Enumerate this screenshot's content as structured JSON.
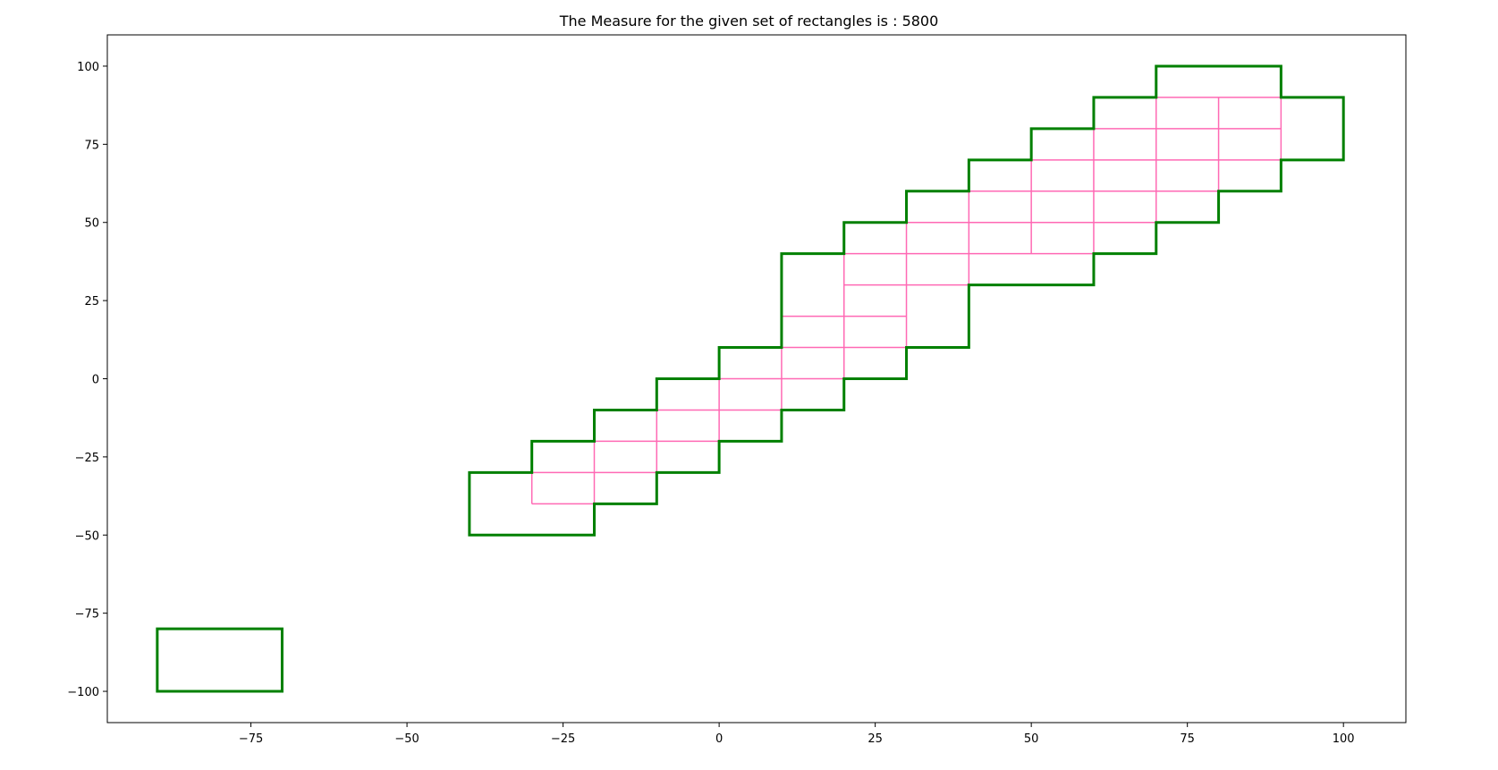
{
  "chart_data": {
    "type": "outline",
    "title": "The Measure for the given set of rectangles is : 5800",
    "xlim": [
      -98,
      110
    ],
    "ylim": [
      -110,
      110
    ],
    "xticks": [
      -75,
      -50,
      -25,
      0,
      25,
      50,
      75,
      100
    ],
    "yticks": [
      100,
      75,
      50,
      25,
      0,
      -25,
      -50,
      -75,
      -100
    ],
    "xtick_labels": [
      "−75",
      "−50",
      "−25",
      "0",
      "25",
      "50",
      "75",
      "100"
    ],
    "ytick_labels": [
      "100",
      "75",
      "50",
      "25",
      "0",
      "−25",
      "−50",
      "−75",
      "−100"
    ],
    "outline_color": "#008000",
    "grid_color": "#ff69b4",
    "outline_polygons": [
      [
        [
          -90,
          -100
        ],
        [
          -70,
          -100
        ],
        [
          -70,
          -80
        ],
        [
          -90,
          -80
        ]
      ],
      [
        [
          -40,
          -50
        ],
        [
          -20,
          -50
        ],
        [
          -20,
          -40
        ],
        [
          -10,
          -40
        ],
        [
          -10,
          -30
        ],
        [
          0,
          -30
        ],
        [
          0,
          -20
        ],
        [
          10,
          -20
        ],
        [
          10,
          -10
        ],
        [
          20,
          -10
        ],
        [
          20,
          0
        ],
        [
          30,
          0
        ],
        [
          30,
          10
        ],
        [
          40,
          10
        ],
        [
          40,
          30
        ],
        [
          60,
          30
        ],
        [
          60,
          40
        ],
        [
          70,
          40
        ],
        [
          70,
          50
        ],
        [
          80,
          50
        ],
        [
          80,
          60
        ],
        [
          90,
          60
        ],
        [
          90,
          70
        ],
        [
          100,
          70
        ],
        [
          100,
          90
        ],
        [
          90,
          90
        ],
        [
          90,
          100
        ],
        [
          70,
          100
        ],
        [
          70,
          90
        ],
        [
          60,
          90
        ],
        [
          60,
          80
        ],
        [
          50,
          80
        ],
        [
          50,
          70
        ],
        [
          40,
          70
        ],
        [
          40,
          60
        ],
        [
          30,
          60
        ],
        [
          30,
          50
        ],
        [
          20,
          50
        ],
        [
          20,
          40
        ],
        [
          10,
          40
        ],
        [
          10,
          10
        ],
        [
          0,
          10
        ],
        [
          0,
          0
        ],
        [
          -10,
          0
        ],
        [
          -10,
          -10
        ],
        [
          -20,
          -10
        ],
        [
          -20,
          -20
        ],
        [
          -30,
          -20
        ],
        [
          -30,
          -30
        ],
        [
          -40,
          -30
        ]
      ]
    ],
    "grid_segments": [
      [
        [
          -30,
          -40
        ],
        [
          -20,
          -40
        ]
      ],
      [
        [
          -30,
          -30
        ],
        [
          -10,
          -30
        ]
      ],
      [
        [
          -20,
          -20
        ],
        [
          0,
          -20
        ]
      ],
      [
        [
          -10,
          -10
        ],
        [
          10,
          -10
        ]
      ],
      [
        [
          0,
          0
        ],
        [
          20,
          0
        ]
      ],
      [
        [
          10,
          10
        ],
        [
          30,
          10
        ]
      ],
      [
        [
          10,
          20
        ],
        [
          30,
          20
        ]
      ],
      [
        [
          20,
          30
        ],
        [
          40,
          30
        ]
      ],
      [
        [
          20,
          40
        ],
        [
          60,
          40
        ]
      ],
      [
        [
          30,
          50
        ],
        [
          70,
          50
        ]
      ],
      [
        [
          40,
          60
        ],
        [
          80,
          60
        ]
      ],
      [
        [
          50,
          70
        ],
        [
          90,
          70
        ]
      ],
      [
        [
          60,
          80
        ],
        [
          90,
          80
        ]
      ],
      [
        [
          70,
          90
        ],
        [
          90,
          90
        ]
      ],
      [
        [
          -30,
          -40
        ],
        [
          -30,
          -30
        ]
      ],
      [
        [
          -20,
          -40
        ],
        [
          -20,
          -20
        ]
      ],
      [
        [
          -10,
          -30
        ],
        [
          -10,
          -10
        ]
      ],
      [
        [
          0,
          -20
        ],
        [
          0,
          0
        ]
      ],
      [
        [
          10,
          -10
        ],
        [
          10,
          10
        ]
      ],
      [
        [
          20,
          0
        ],
        [
          20,
          40
        ]
      ],
      [
        [
          30,
          10
        ],
        [
          30,
          50
        ]
      ],
      [
        [
          40,
          30
        ],
        [
          40,
          60
        ]
      ],
      [
        [
          50,
          40
        ],
        [
          50,
          70
        ]
      ],
      [
        [
          60,
          40
        ],
        [
          60,
          80
        ]
      ],
      [
        [
          70,
          50
        ],
        [
          70,
          90
        ]
      ],
      [
        [
          80,
          60
        ],
        [
          80,
          90
        ]
      ],
      [
        [
          90,
          70
        ],
        [
          90,
          90
        ]
      ]
    ]
  }
}
